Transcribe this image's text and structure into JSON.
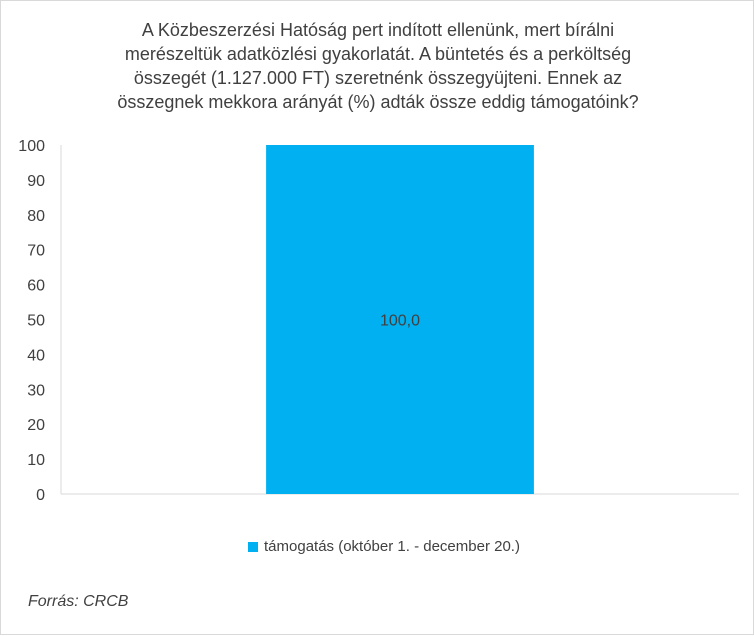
{
  "chart_data": {
    "type": "bar",
    "title": "A Közbeszerzési Hatóság pert indított ellenünk, mert bírálni merészeltük adatközlési gyakorlatát. A büntetés és a perköltség összegét (1.127.000 FT) szeretnénk összegyüjteni.  Ennek az összegnek mekkora arányát (%) adták össze eddig támogatóink?",
    "title_lines": [
      "A Közbeszerzési Hatóság pert indított ellenünk, mert bírálni",
      "merészeltük adatközlési gyakorlatát. A büntetés és a perköltség",
      "összegét (1.127.000 FT) szeretnénk összegyüjteni.  Ennek az",
      "összegnek mekkora arányát (%) adták össze eddig támogatóink?"
    ],
    "categories": [
      ""
    ],
    "series": [
      {
        "name": "támogatás (október 1. - december 20.)",
        "values": [
          100.0
        ],
        "data_labels": [
          "100,0"
        ],
        "color": "#00b0f0"
      }
    ],
    "ylim": [
      0,
      100
    ],
    "yticks": [
      "0",
      "10",
      "20",
      "30",
      "40",
      "50",
      "60",
      "70",
      "80",
      "90",
      "100"
    ],
    "grid": false,
    "legend_position": "bottom",
    "xlabel": "",
    "ylabel": ""
  },
  "source": "Forrás: CRCB"
}
